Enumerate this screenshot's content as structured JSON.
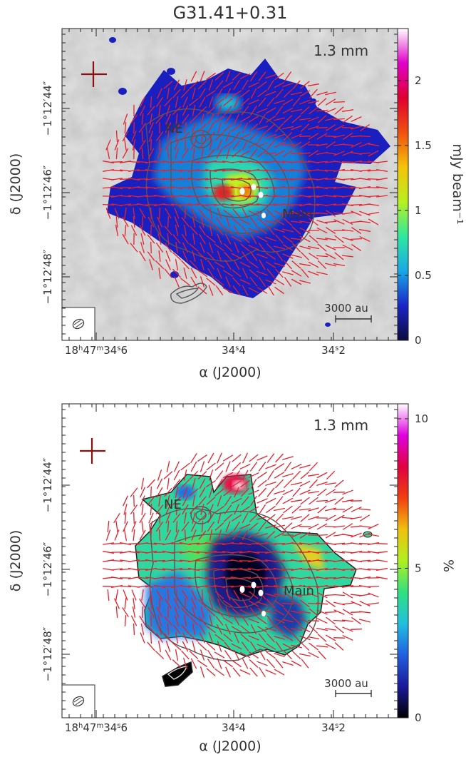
{
  "figure": {
    "title": "G31.41+0.31",
    "xlabel": "α (J2000)",
    "ylabel": "δ (J2000)",
    "panels": [
      {
        "id": "top",
        "band": "1.3 mm",
        "colorbar_label": "mJy beam⁻¹",
        "colorbar_ticks": [
          "0",
          "0.5",
          "1",
          "1.5",
          "2"
        ],
        "colorbar_range": [
          0,
          2.4
        ],
        "colormap": [
          "#0b0b3e",
          "#1a26c8",
          "#19a8e8",
          "#2ee8a0",
          "#b8f020",
          "#f4c40a",
          "#f05010",
          "#e00030",
          "#e000c8",
          "#ffffff"
        ],
        "labels": [
          "NE",
          "Main"
        ],
        "scalebar": "3000 au",
        "yticks": [
          "−1°12′44″",
          "−1°12′46″",
          "−1°12′48″"
        ],
        "xticks": [
          {
            "pre": "18",
            "h": "h",
            "mid": "47",
            "m": "m",
            "s1": "34",
            "s": "s",
            "s2": "6"
          },
          {
            "pre": "",
            "h": "",
            "mid": "",
            "m": "",
            "s1": "34",
            "s": "s",
            "s2": "4"
          },
          {
            "pre": "",
            "h": "",
            "mid": "",
            "m": "",
            "s1": "34",
            "s": "s",
            "s2": "2"
          }
        ]
      },
      {
        "id": "bottom",
        "band": "1.3 mm",
        "colorbar_label": "%",
        "colorbar_ticks": [
          "0",
          "5",
          "10"
        ],
        "colorbar_range": [
          0,
          10.5
        ],
        "colormap": [
          "#000000",
          "#1a1a9a",
          "#2060e0",
          "#20c0e0",
          "#30e080",
          "#b0f020",
          "#f0c010",
          "#f04010",
          "#e00040",
          "#e000e0",
          "#ffffff"
        ],
        "labels": [
          "NE",
          "Main"
        ],
        "scalebar": "3000 au",
        "yticks": [
          "−1°12′44″",
          "−1°12′46″",
          "−1°12′48″"
        ],
        "xticks": [
          {
            "pre": "18",
            "h": "h",
            "mid": "47",
            "m": "m",
            "s1": "34",
            "s": "s",
            "s2": "6"
          },
          {
            "pre": "",
            "h": "",
            "mid": "",
            "m": "",
            "s1": "34",
            "s": "s",
            "s2": "4"
          },
          {
            "pre": "",
            "h": "",
            "mid": "",
            "m": "",
            "s1": "34",
            "s": "s",
            "s2": "2"
          }
        ]
      }
    ]
  }
}
